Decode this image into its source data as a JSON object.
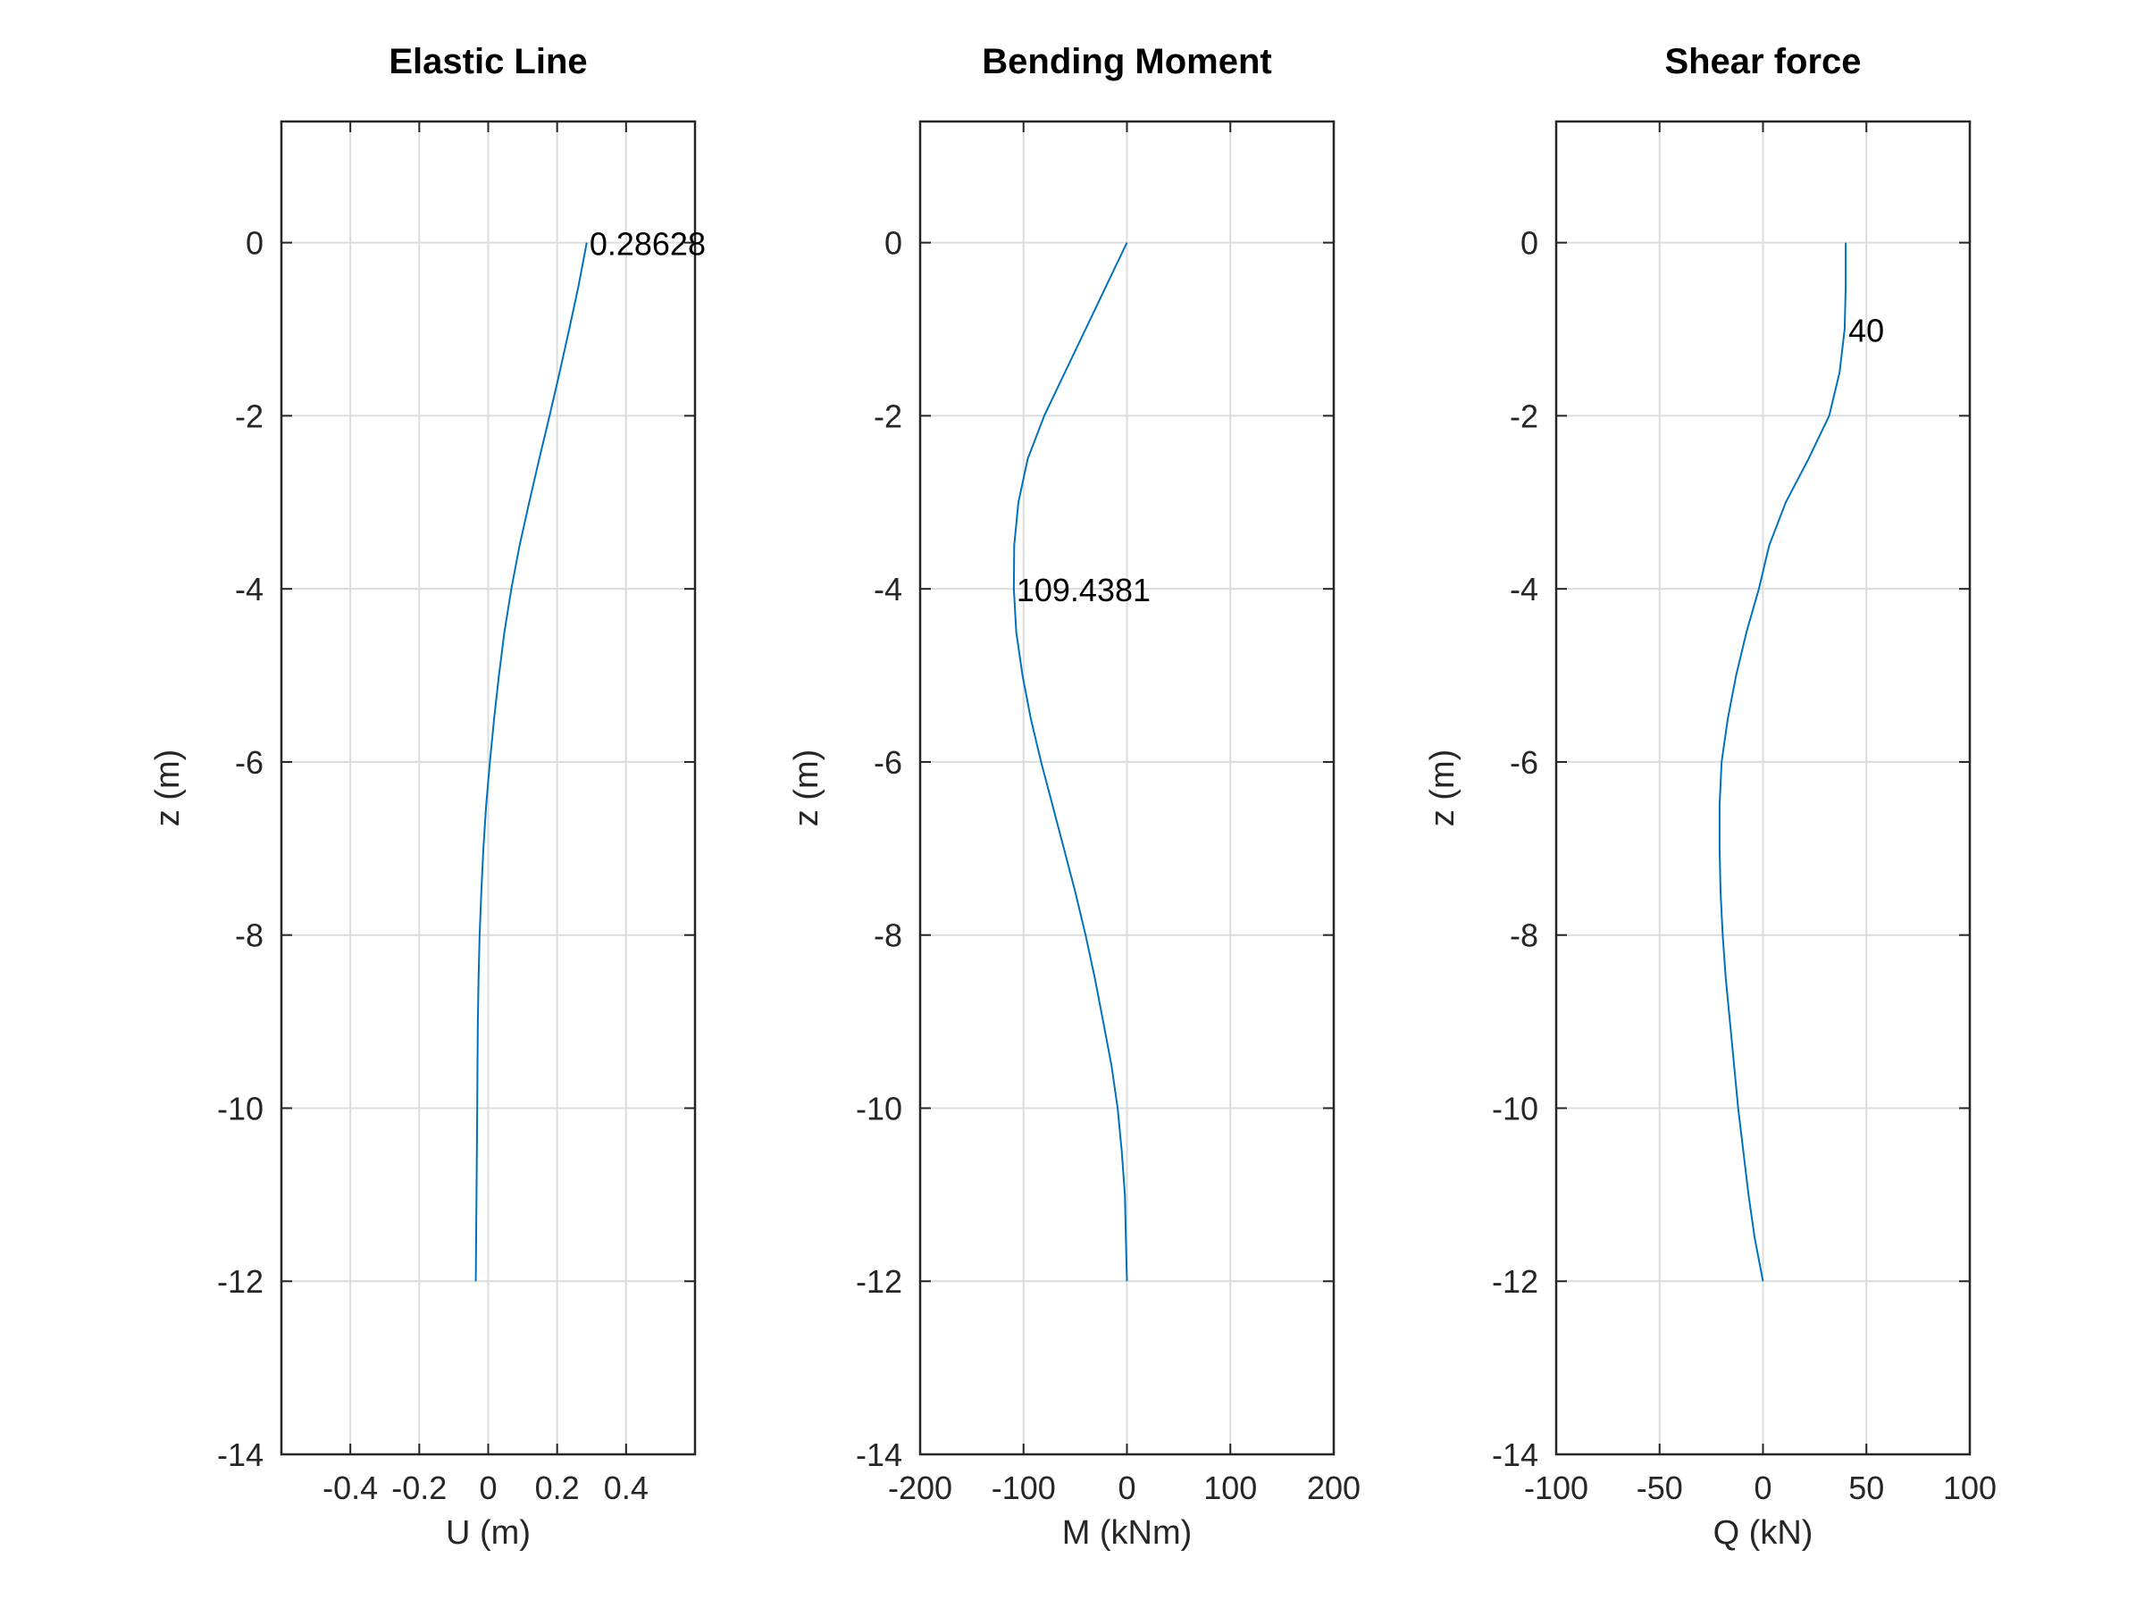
{
  "chart_data": [
    {
      "type": "line",
      "title": "Elastic Line",
      "xlabel": "U (m)",
      "ylabel": "z (m)",
      "xlim": [
        -0.6,
        0.6
      ],
      "ylim": [
        -14,
        1.4
      ],
      "xticks": [
        -0.4,
        -0.2,
        0,
        0.2,
        0.4
      ],
      "xtick_labels": [
        "-0.4",
        "-0.2",
        "0",
        "0.2",
        "0.4"
      ],
      "yticks": [
        0,
        -2,
        -4,
        -6,
        -8,
        -10,
        -12,
        -14
      ],
      "ytick_labels": [
        "0",
        "-2",
        "-4",
        "-6",
        "-8",
        "-10",
        "-12",
        "-14"
      ],
      "grid": true,
      "series": [
        {
          "color": "#0072bd",
          "x": [
            0.286,
            0.262,
            0.235,
            0.207,
            0.178,
            0.148,
            0.119,
            0.091,
            0.067,
            0.047,
            0.031,
            0.017,
            0.005,
            -0.006,
            -0.014,
            -0.02,
            -0.025,
            -0.028,
            -0.03,
            -0.031,
            -0.032,
            -0.033,
            -0.034,
            -0.035,
            -0.036
          ],
          "y": [
            0,
            -0.5,
            -1,
            -1.5,
            -2,
            -2.5,
            -3,
            -3.5,
            -4,
            -4.5,
            -5,
            -5.5,
            -6,
            -6.5,
            -7,
            -7.5,
            -8,
            -8.5,
            -9,
            -9.5,
            -10,
            -10.5,
            -11,
            -11.5,
            -12
          ]
        }
      ],
      "annotations": [
        {
          "text": "0.28628",
          "x": 0.286,
          "y": 0
        }
      ]
    },
    {
      "type": "line",
      "title": "Bending Moment",
      "xlabel": "M (kNm)",
      "ylabel": "z (m)",
      "xlim": [
        -200,
        200
      ],
      "ylim": [
        -14,
        1.4
      ],
      "xticks": [
        -200,
        -100,
        0,
        100,
        200
      ],
      "xtick_labels": [
        "-200",
        "-100",
        "0",
        "100",
        "200"
      ],
      "yticks": [
        0,
        -2,
        -4,
        -6,
        -8,
        -10,
        -12,
        -14
      ],
      "ytick_labels": [
        "0",
        "-2",
        "-4",
        "-6",
        "-8",
        "-10",
        "-12",
        "-14"
      ],
      "grid": true,
      "series": [
        {
          "color": "#0072bd",
          "x": [
            0,
            -20,
            -40,
            -60,
            -80,
            -96,
            -105,
            -109,
            -109.4,
            -107,
            -101,
            -93,
            -83,
            -72,
            -61,
            -50,
            -40,
            -31,
            -23,
            -15,
            -9,
            -5,
            -2,
            -1,
            0
          ],
          "y": [
            0,
            -0.5,
            -1,
            -1.5,
            -2,
            -2.5,
            -3,
            -3.5,
            -4,
            -4.5,
            -5,
            -5.5,
            -6,
            -6.5,
            -7,
            -7.5,
            -8,
            -8.5,
            -9,
            -9.5,
            -10,
            -10.5,
            -11,
            -11.5,
            -12
          ]
        }
      ],
      "annotations": [
        {
          "text": "109.4381",
          "x": -109.4,
          "y": -4
        }
      ]
    },
    {
      "type": "line",
      "title": "Shear force",
      "xlabel": "Q (kN)",
      "ylabel": "z (m)",
      "xlim": [
        -100,
        100
      ],
      "ylim": [
        -14,
        1.4
      ],
      "xticks": [
        -100,
        -50,
        0,
        50,
        100
      ],
      "xtick_labels": [
        "-100",
        "-50",
        "0",
        "50",
        "100"
      ],
      "yticks": [
        0,
        -2,
        -4,
        -6,
        -8,
        -10,
        -12,
        -14
      ],
      "ytick_labels": [
        "0",
        "-2",
        "-4",
        "-6",
        "-8",
        "-10",
        "-12",
        "-14"
      ],
      "grid": true,
      "series": [
        {
          "color": "#0072bd",
          "x": [
            40,
            40,
            39.5,
            37,
            32,
            22,
            11,
            3,
            -2,
            -8,
            -13,
            -17,
            -20,
            -21,
            -21,
            -20.5,
            -19.5,
            -18,
            -16,
            -14,
            -12,
            -9.5,
            -7,
            -4,
            0
          ],
          "y": [
            0,
            -0.5,
            -1,
            -1.5,
            -2,
            -2.5,
            -3,
            -3.5,
            -4,
            -4.5,
            -5,
            -5.5,
            -6,
            -6.5,
            -7,
            -7.5,
            -8,
            -8.5,
            -9,
            -9.5,
            -10,
            -10.5,
            -11,
            -11.5,
            -12
          ]
        }
      ],
      "annotations": [
        {
          "text": "40",
          "x": 40,
          "y": -1
        }
      ]
    }
  ]
}
